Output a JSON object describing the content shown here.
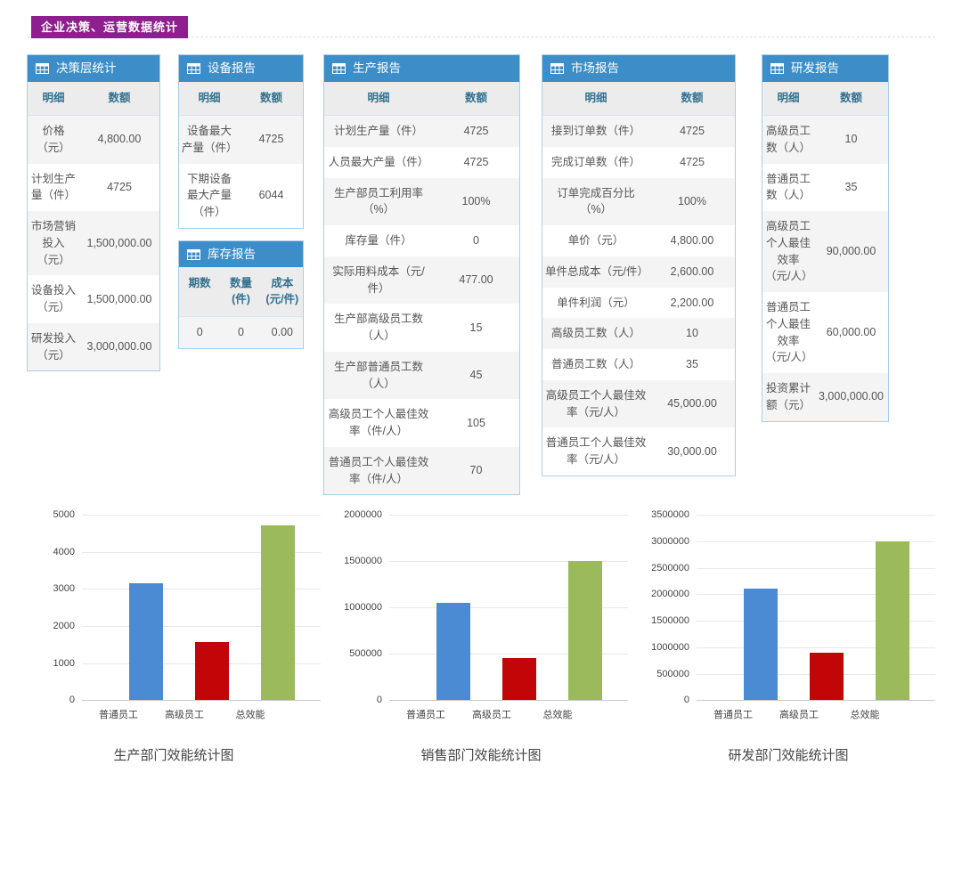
{
  "header": {
    "badge": "企业决策、运营数据统计"
  },
  "colors": {
    "badge_purple": "#8e1f8e",
    "table_header_blue": "#3d8ec8",
    "subheader_text_blue": "#31708f",
    "bar_blue": "#4a8bd4",
    "bar_red": "#c20507",
    "bar_green": "#9aba5c"
  },
  "tables": [
    {
      "id": "decision",
      "title": "决策层统计",
      "columns": [
        "明细",
        "数额"
      ],
      "rows": [
        [
          "价格（元）",
          "4,800.00"
        ],
        [
          "计划生产量（件）",
          "4725"
        ],
        [
          "市场营销投入（元）",
          "1,500,000.00"
        ],
        [
          "设备投入（元）",
          "1,500,000.00"
        ],
        [
          "研发投入（元）",
          "3,000,000.00"
        ]
      ]
    },
    {
      "id": "equipment",
      "title": "设备报告",
      "columns": [
        "明细",
        "数额"
      ],
      "rows": [
        [
          "设备最大产量（件）",
          "4725"
        ],
        [
          "下期设备最大产量（件）",
          "6044"
        ]
      ]
    },
    {
      "id": "inventory",
      "title": "库存报告",
      "columns": [
        "期数",
        "数量(件)",
        "成本(元/件)"
      ],
      "rows": [
        [
          "0",
          "0",
          "0.00"
        ]
      ]
    },
    {
      "id": "production",
      "title": "生产报告",
      "columns": [
        "明细",
        "数额"
      ],
      "rows": [
        [
          "计划生产量（件）",
          "4725"
        ],
        [
          "人员最大产量（件）",
          "4725"
        ],
        [
          "生产部员工利用率（%）",
          "100%"
        ],
        [
          "库存量（件）",
          "0"
        ],
        [
          "实际用料成本（元/件）",
          "477.00"
        ],
        [
          "生产部高级员工数（人）",
          "15"
        ],
        [
          "生产部普通员工数（人）",
          "45"
        ],
        [
          "高级员工个人最佳效率（件/人）",
          "105"
        ],
        [
          "普通员工个人最佳效率（件/人）",
          "70"
        ]
      ]
    },
    {
      "id": "market",
      "title": "市场报告",
      "columns": [
        "明细",
        "数额"
      ],
      "rows": [
        [
          "接到订单数（件）",
          "4725"
        ],
        [
          "完成订单数（件）",
          "4725"
        ],
        [
          "订单完成百分比（%）",
          "100%"
        ],
        [
          "单价（元）",
          "4,800.00"
        ],
        [
          "单件总成本（元/件）",
          "2,600.00"
        ],
        [
          "单件利润（元）",
          "2,200.00"
        ],
        [
          "高级员工数（人）",
          "10"
        ],
        [
          "普通员工数（人）",
          "35"
        ],
        [
          "高级员工个人最佳效率（元/人）",
          "45,000.00"
        ],
        [
          "普通员工个人最佳效率（元/人）",
          "30,000.00"
        ]
      ]
    },
    {
      "id": "rnd",
      "title": "研发报告",
      "columns": [
        "明细",
        "数额"
      ],
      "rows": [
        [
          "高级员工数（人）",
          "10"
        ],
        [
          "普通员工数（人）",
          "35"
        ],
        [
          "高级员工个人最佳效率（元/人）",
          "90,000.00"
        ],
        [
          "普通员工个人最佳效率（元/人）",
          "60,000.00"
        ],
        [
          "投资累计额（元）",
          "3,000,000.00"
        ]
      ]
    }
  ],
  "chart_data": [
    {
      "type": "bar",
      "title": "生产部门效能统计图",
      "categories": [
        "普通员工",
        "高级员工",
        "总效能"
      ],
      "values": [
        3150,
        1575,
        4725
      ],
      "bar_colors": [
        "#4a8bd4",
        "#c20507",
        "#9aba5c"
      ],
      "xlabel": "",
      "ylabel": "",
      "ylim": [
        0,
        5000
      ],
      "yticks": [
        "5000",
        "4000",
        "3000",
        "2000",
        "1000",
        "0"
      ],
      "grid": true,
      "legend": "none"
    },
    {
      "type": "bar",
      "title": "销售部门效能统计图",
      "categories": [
        "普通员工",
        "高级员工",
        "总效能"
      ],
      "values": [
        1050000,
        450000,
        1500000
      ],
      "bar_colors": [
        "#4a8bd4",
        "#c20507",
        "#9aba5c"
      ],
      "xlabel": "",
      "ylabel": "",
      "ylim": [
        0,
        2000000
      ],
      "yticks": [
        "2000000",
        "1500000",
        "1000000",
        "500000",
        "0"
      ],
      "grid": true,
      "legend": "none"
    },
    {
      "type": "bar",
      "title": "研发部门效能统计图",
      "categories": [
        "普通员工",
        "高级员工",
        "总效能"
      ],
      "values": [
        2100000,
        900000,
        3000000
      ],
      "bar_colors": [
        "#4a8bd4",
        "#c20507",
        "#9aba5c"
      ],
      "xlabel": "",
      "ylabel": "",
      "ylim": [
        0,
        3500000
      ],
      "yticks": [
        "3500000",
        "3000000",
        "2500000",
        "2000000",
        "1500000",
        "1000000",
        "500000",
        "0"
      ],
      "grid": true,
      "legend": "none"
    }
  ]
}
